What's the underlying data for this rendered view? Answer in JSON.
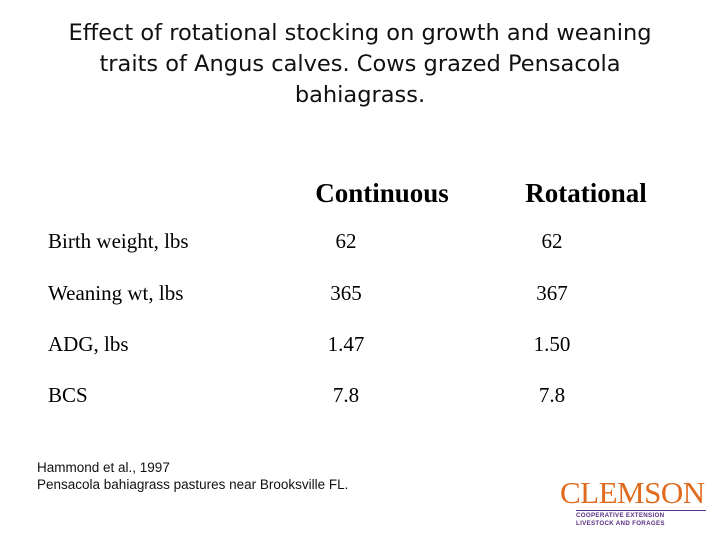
{
  "slide": {
    "title_lines": [
      "Effect of rotational stocking on growth and weaning",
      "traits of Angus calves. Cows grazed Pensacola",
      "bahiagrass."
    ]
  },
  "table": {
    "headers": [
      "Continuous",
      "Rotational"
    ],
    "rows": [
      {
        "label": "Birth weight, lbs",
        "continuous": "62",
        "rotational": "62"
      },
      {
        "label": "Weaning wt, lbs",
        "continuous": "365",
        "rotational": "367"
      },
      {
        "label": "ADG, lbs",
        "continuous": "1.47",
        "rotational": "1.50"
      },
      {
        "label": "BCS",
        "continuous": "7.8",
        "rotational": "7.8"
      }
    ]
  },
  "source": {
    "lines": [
      "Hammond et al., 1997",
      "Pensacola bahiagrass pastures near Brooksville FL."
    ]
  },
  "logo": {
    "wordmark": "CLEMSON",
    "sub_lines": [
      "COOPERATIVE EXTENSION",
      "LIVESTOCK AND FORAGES"
    ],
    "colors": {
      "primary": "#e06a1d",
      "secondary": "#5a2d82"
    }
  }
}
